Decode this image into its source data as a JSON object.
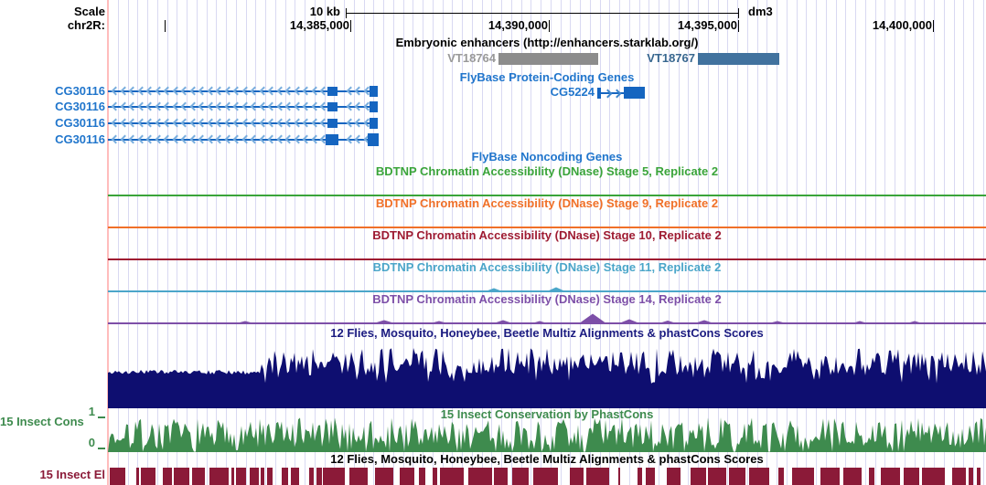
{
  "header": {
    "scale_label": "Scale",
    "scale_bar_label": "10 kb",
    "assembly": "dm3",
    "chrom_label": "chr2R:",
    "coordinates": [
      {
        "text": "14,385,000"
      },
      {
        "text": "14,390,000"
      },
      {
        "text": "14,395,000"
      },
      {
        "text": "14,400,000"
      }
    ]
  },
  "enhancers": {
    "title": "Embryonic enhancers (http://enhancers.starklab.org/)",
    "items": [
      {
        "name": "VT18764",
        "color": "#8c8c8c"
      },
      {
        "name": "VT18767",
        "color": "#41729e"
      }
    ]
  },
  "genes": {
    "protein_coding_title": "FlyBase Protein-Coding Genes",
    "noncoding_title": "FlyBase Noncoding Genes",
    "gene_color": "#1565c0",
    "cg5224": {
      "name": "CG5224"
    },
    "cg30116_rows": [
      {
        "name": "CG30116"
      },
      {
        "name": "CG30116"
      },
      {
        "name": "CG30116"
      },
      {
        "name": "CG30116"
      }
    ]
  },
  "bdtnp_tracks": [
    {
      "title": "BDTNP Chromatin Accessibility (DNase) Stage 5, Replicate 2",
      "color": "#3aa43a"
    },
    {
      "title": "BDTNP Chromatin Accessibility (DNase) Stage 9, Replicate 2",
      "color": "#f07028"
    },
    {
      "title": "BDTNP Chromatin Accessibility (DNase) Stage 10, Replicate 2",
      "color": "#9e1b32"
    },
    {
      "title": "BDTNP Chromatin Accessibility (DNase) Stage 11, Replicate 2",
      "color": "#4ba6c9"
    },
    {
      "title": "BDTNP Chromatin Accessibility (DNase) Stage 14, Replicate 2",
      "color": "#7d4fa8"
    }
  ],
  "multiz": {
    "title_top": "12 Flies, Mosquito, Honeybee, Beetle Multiz Alignments & phastCons Scores",
    "title_bottom": "12 Flies, Mosquito, Honeybee, Beetle Multiz Alignments & phastCons Scores",
    "histogram_color": "#0e0e70"
  },
  "phastcons": {
    "title": "15 Insect Conservation by PhastCons",
    "left_label": "15 Insect Cons",
    "axis_max": "1",
    "axis_min": "0",
    "color": "#3e8b4e"
  },
  "insect_elements": {
    "left_label": "15 Insect El",
    "color": "#8b1a38"
  }
}
